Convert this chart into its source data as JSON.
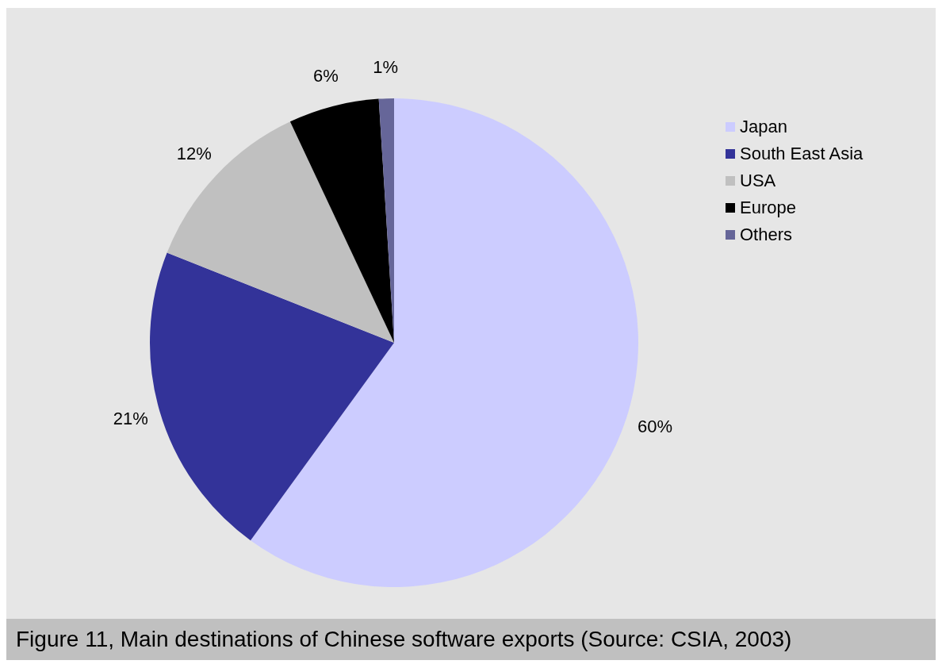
{
  "chart_data": {
    "type": "pie",
    "categories": [
      "Japan",
      "South East Asia",
      "USA",
      "Europe",
      "Others"
    ],
    "values": [
      60,
      21,
      12,
      6,
      1
    ],
    "colors": [
      "#ccccff",
      "#333399",
      "#c0c0c0",
      "#000000",
      "#666699"
    ],
    "value_labels": [
      "60%",
      "21%",
      "12%",
      "6%",
      "1%"
    ],
    "legend": "top right",
    "annotations": [
      "Figure 11, Main destinations of Chinese software exports (Source: CSIA, 2003)"
    ]
  }
}
